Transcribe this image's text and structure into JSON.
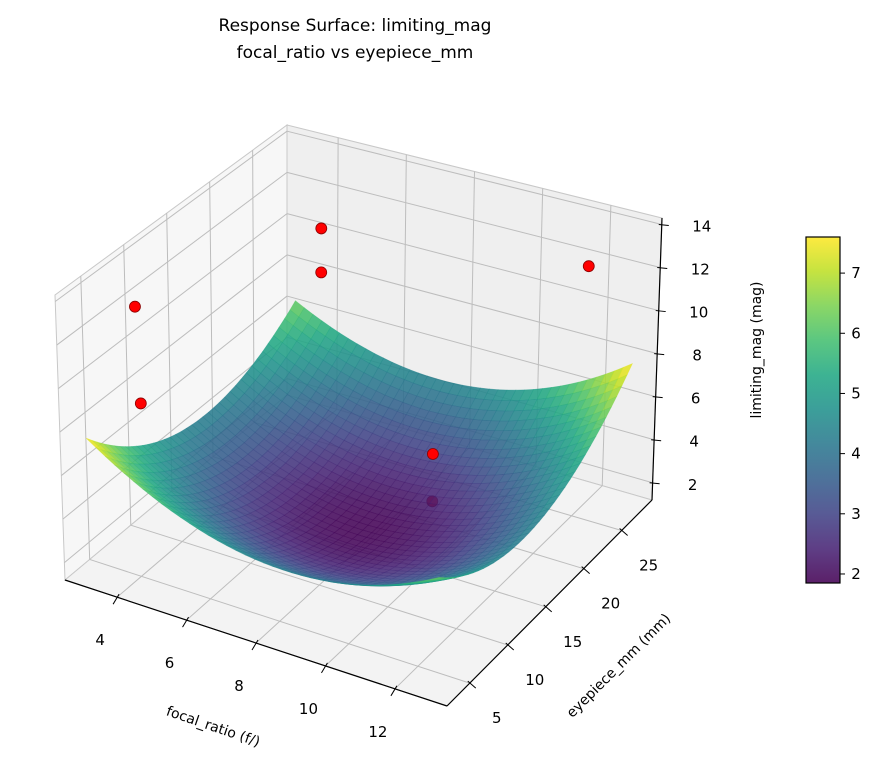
{
  "chart_data": {
    "type": "surface",
    "title": "Response Surface: limiting_mag",
    "subtitle": "focal_ratio vs eyepiece_mm",
    "xlabel": "focal_ratio (f/)",
    "ylabel": "eyepiece_mm (mm)",
    "zlabel": "limiting_mag (mag)",
    "xlim": [
      2.5,
      13.5
    ],
    "ylim": [
      2,
      29
    ],
    "zlim": [
      1.2,
      14.3
    ],
    "xticks": [
      4,
      6,
      8,
      10,
      12
    ],
    "yticks": [
      5,
      10,
      15,
      20,
      25
    ],
    "zticks": [
      2,
      4,
      6,
      8,
      10,
      12,
      14
    ],
    "grid": true,
    "colormap": "viridis",
    "colorbar": {
      "ticks": [
        2,
        3,
        4,
        5,
        6,
        7
      ],
      "range": [
        1.85,
        7.6
      ],
      "placement": "right"
    },
    "surface": {
      "x": [
        3,
        5,
        7,
        9,
        11,
        13
      ],
      "y": [
        3,
        8,
        13,
        18,
        23,
        28
      ],
      "z": [
        [
          7.67,
          5.74,
          4.64,
          4.37,
          4.93,
          6.32
        ],
        [
          5.8,
          3.98,
          2.99,
          2.82,
          3.49,
          4.99
        ],
        [
          4.73,
          3.02,
          2.13,
          2.08,
          2.85,
          4.46
        ],
        [
          4.46,
          2.85,
          2.08,
          2.13,
          3.02,
          4.73
        ],
        [
          4.99,
          3.49,
          2.82,
          2.99,
          3.98,
          5.8
        ],
        [
          6.32,
          4.93,
          4.37,
          4.64,
          5.74,
          7.67
        ]
      ]
    },
    "points": [
      {
        "x": 4.5,
        "y": 25,
        "z": 11.4
      },
      {
        "x": 4.5,
        "y": 25,
        "z": 9.3
      },
      {
        "x": 4.0,
        "y": 5,
        "z": 13.6
      },
      {
        "x": 4.1,
        "y": 5,
        "z": 9.2
      },
      {
        "x": 12.3,
        "y": 25,
        "z": 12.9
      },
      {
        "x": 9.0,
        "y": 20,
        "z": 4.4
      },
      {
        "x": 9.0,
        "y": 20,
        "z": 2.2
      }
    ],
    "point_color": "#ff0000",
    "point_edge_color": "#8b0000"
  }
}
